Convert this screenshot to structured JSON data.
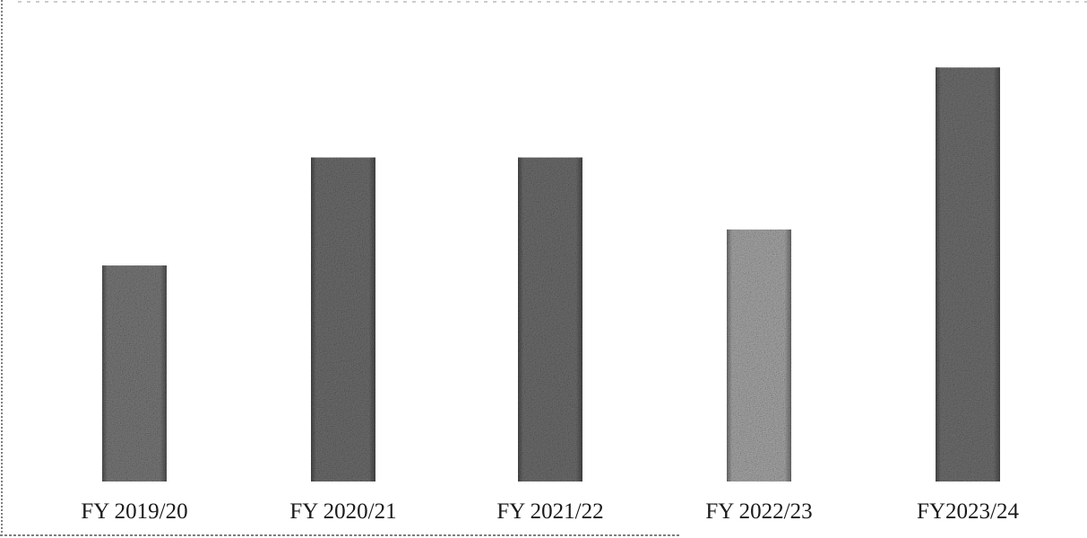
{
  "chart_data": {
    "type": "bar",
    "title": "",
    "xlabel": "",
    "ylabel": "",
    "categories": [
      "FY 2019/20",
      "FY 2020/21",
      "FY 2021/22",
      "FY 2022/23",
      "FY2023/24"
    ],
    "values": [
      24,
      36,
      36,
      28,
      46
    ],
    "ylim": [
      0,
      50
    ],
    "grid": false,
    "bar_colors": [
      "#7a7a7a",
      "#6e6e6e",
      "#6e6e6e",
      "#a8a8a8",
      "#707070"
    ]
  }
}
